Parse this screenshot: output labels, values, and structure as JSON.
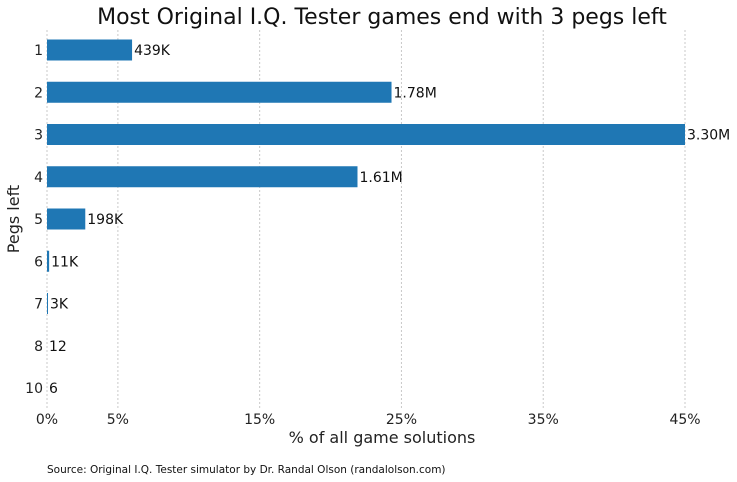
{
  "chart_data": {
    "type": "bar",
    "orientation": "horizontal",
    "title": "Most Original I.Q. Tester games end with 3 pegs left",
    "xlabel": "% of all game solutions",
    "ylabel": "Pegs left",
    "categories": [
      "1",
      "2",
      "3",
      "4",
      "5",
      "6",
      "7",
      "8",
      "10"
    ],
    "values": [
      6.0,
      24.3,
      45.0,
      21.9,
      2.7,
      0.15,
      0.04,
      0.0002,
      0.0001
    ],
    "data_labels": [
      "439K",
      "1.78M",
      "3.30M",
      "1.61M",
      "198K",
      "11K",
      "3K",
      "12",
      "6"
    ],
    "xlim": [
      0,
      45
    ],
    "xticks": [
      0,
      5,
      15,
      25,
      35,
      45
    ],
    "xtick_labels": [
      "0%",
      "5%",
      "15%",
      "25%",
      "35%",
      "45%"
    ],
    "grid": "vertical dashed",
    "bar_color": "#1f77b4",
    "source": "Source: Original I.Q. Tester simulator by Dr. Randal Olson (randalolson.com)"
  }
}
